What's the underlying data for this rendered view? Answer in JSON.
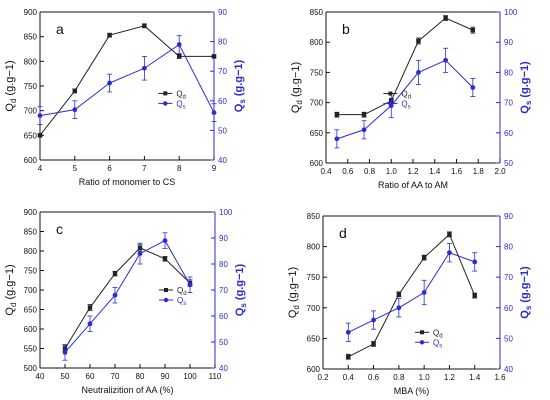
{
  "colors": {
    "qd": "#222222",
    "qs": "#2b2bd9",
    "axis": "#111111"
  },
  "chart_data": [
    {
      "panel_label": "a",
      "type": "line",
      "xlabel": "Ratio of monomer to CS",
      "ylabel_left": "Qd (g.g−1)",
      "ylabel_right": "Qs (g.g−1)",
      "xlim": [
        4,
        9
      ],
      "xticks": [
        4,
        5,
        6,
        7,
        8,
        9
      ],
      "ylim_left": [
        600,
        900
      ],
      "yticks_left": [
        600,
        650,
        700,
        750,
        800,
        850,
        900
      ],
      "ylim_right": [
        40,
        90
      ],
      "yticks_right": [
        40,
        50,
        60,
        70,
        80,
        90
      ],
      "legend": "middle-right",
      "series": [
        {
          "name": "Qd",
          "axis": "left",
          "marker": "square",
          "x": [
            4,
            5,
            6,
            7,
            8,
            9
          ],
          "y": [
            650,
            740,
            853,
            872,
            810,
            810
          ],
          "err": [
            3,
            4,
            4,
            4,
            4,
            3
          ]
        },
        {
          "name": "Qs",
          "axis": "right",
          "marker": "circle",
          "x": [
            4,
            5,
            6,
            7,
            8,
            9
          ],
          "y": [
            55,
            57,
            66,
            71,
            79,
            56
          ],
          "err": [
            3,
            3,
            3,
            4,
            3,
            3
          ]
        }
      ]
    },
    {
      "panel_label": "b",
      "type": "line",
      "xlabel": "Ratio of AA to AM",
      "ylabel_left": "Qd (g.g−1)",
      "ylabel_right": "Qs (g.g−1)",
      "xlim": [
        0.4,
        2.0
      ],
      "xticks": [
        0.4,
        0.6,
        0.8,
        1.0,
        1.2,
        1.4,
        1.6,
        1.8,
        2.0
      ],
      "ylim_left": [
        600,
        850
      ],
      "yticks_left": [
        600,
        650,
        700,
        750,
        800,
        850
      ],
      "ylim_right": [
        50,
        100
      ],
      "yticks_right": [
        50,
        60,
        70,
        80,
        90,
        100
      ],
      "legend": "middle-left",
      "series": [
        {
          "name": "Qd",
          "axis": "left",
          "marker": "square",
          "x": [
            0.5,
            0.75,
            1.0,
            1.25,
            1.5,
            1.75
          ],
          "y": [
            680,
            680,
            703,
            802,
            840,
            820
          ],
          "err": [
            4,
            4,
            4,
            5,
            4,
            5
          ]
        },
        {
          "name": "Qs",
          "axis": "right",
          "marker": "circle",
          "x": [
            0.5,
            0.75,
            1.0,
            1.25,
            1.5,
            1.75
          ],
          "y": [
            58,
            61,
            69,
            80,
            84,
            75
          ],
          "err": [
            3,
            3,
            4,
            4,
            4,
            3
          ]
        }
      ]
    },
    {
      "panel_label": "c",
      "type": "line",
      "xlabel": "Neutralizition of AA (%)",
      "ylabel_left": "Qd (g.g−1)",
      "ylabel_right": "Qs (g.g−1)",
      "xlim": [
        40,
        110
      ],
      "xticks": [
        40,
        50,
        60,
        70,
        80,
        90,
        100,
        110
      ],
      "ylim_left": [
        500,
        900
      ],
      "yticks_left": [
        500,
        550,
        600,
        650,
        700,
        750,
        800,
        850,
        900
      ],
      "ylim_right": [
        40,
        100
      ],
      "yticks_right": [
        40,
        50,
        60,
        70,
        80,
        90,
        100
      ],
      "legend": "middle-right",
      "series": [
        {
          "name": "Qd",
          "axis": "left",
          "marker": "square",
          "x": [
            50,
            60,
            70,
            80,
            90,
            100
          ],
          "y": [
            550,
            655,
            742,
            808,
            780,
            718
          ],
          "err": [
            8,
            8,
            6,
            8,
            6,
            8
          ]
        },
        {
          "name": "Qs",
          "axis": "right",
          "marker": "circle",
          "x": [
            50,
            60,
            70,
            80,
            90,
            100
          ],
          "y": [
            46,
            57,
            68,
            84,
            89,
            72
          ],
          "err": [
            3,
            3,
            3,
            4,
            3,
            3
          ]
        }
      ]
    },
    {
      "panel_label": "d",
      "type": "line",
      "xlabel": "MBA (%)",
      "ylabel_left": "Qd (g.g−1)",
      "ylabel_right": "Qs (g.g−1)",
      "xlim": [
        0.2,
        1.6
      ],
      "xticks": [
        0.2,
        0.4,
        0.6,
        0.8,
        1.0,
        1.2,
        1.4,
        1.6
      ],
      "ylim_left": [
        600,
        850
      ],
      "yticks_left": [
        600,
        650,
        700,
        750,
        800,
        850
      ],
      "ylim_right": [
        40,
        90
      ],
      "yticks_right": [
        40,
        50,
        60,
        70,
        80,
        90
      ],
      "legend": "bottom-center",
      "series": [
        {
          "name": "Qd",
          "axis": "left",
          "marker": "square",
          "x": [
            0.4,
            0.6,
            0.8,
            1.0,
            1.2,
            1.4
          ],
          "y": [
            620,
            641,
            722,
            782,
            820,
            720
          ],
          "err": [
            4,
            4,
            4,
            4,
            4,
            4
          ]
        },
        {
          "name": "Qs",
          "axis": "right",
          "marker": "circle",
          "x": [
            0.4,
            0.6,
            0.8,
            1.0,
            1.2,
            1.4
          ],
          "y": [
            52,
            56,
            60,
            65,
            78,
            75
          ],
          "err": [
            3,
            3,
            3,
            4,
            3,
            3
          ]
        }
      ]
    }
  ]
}
